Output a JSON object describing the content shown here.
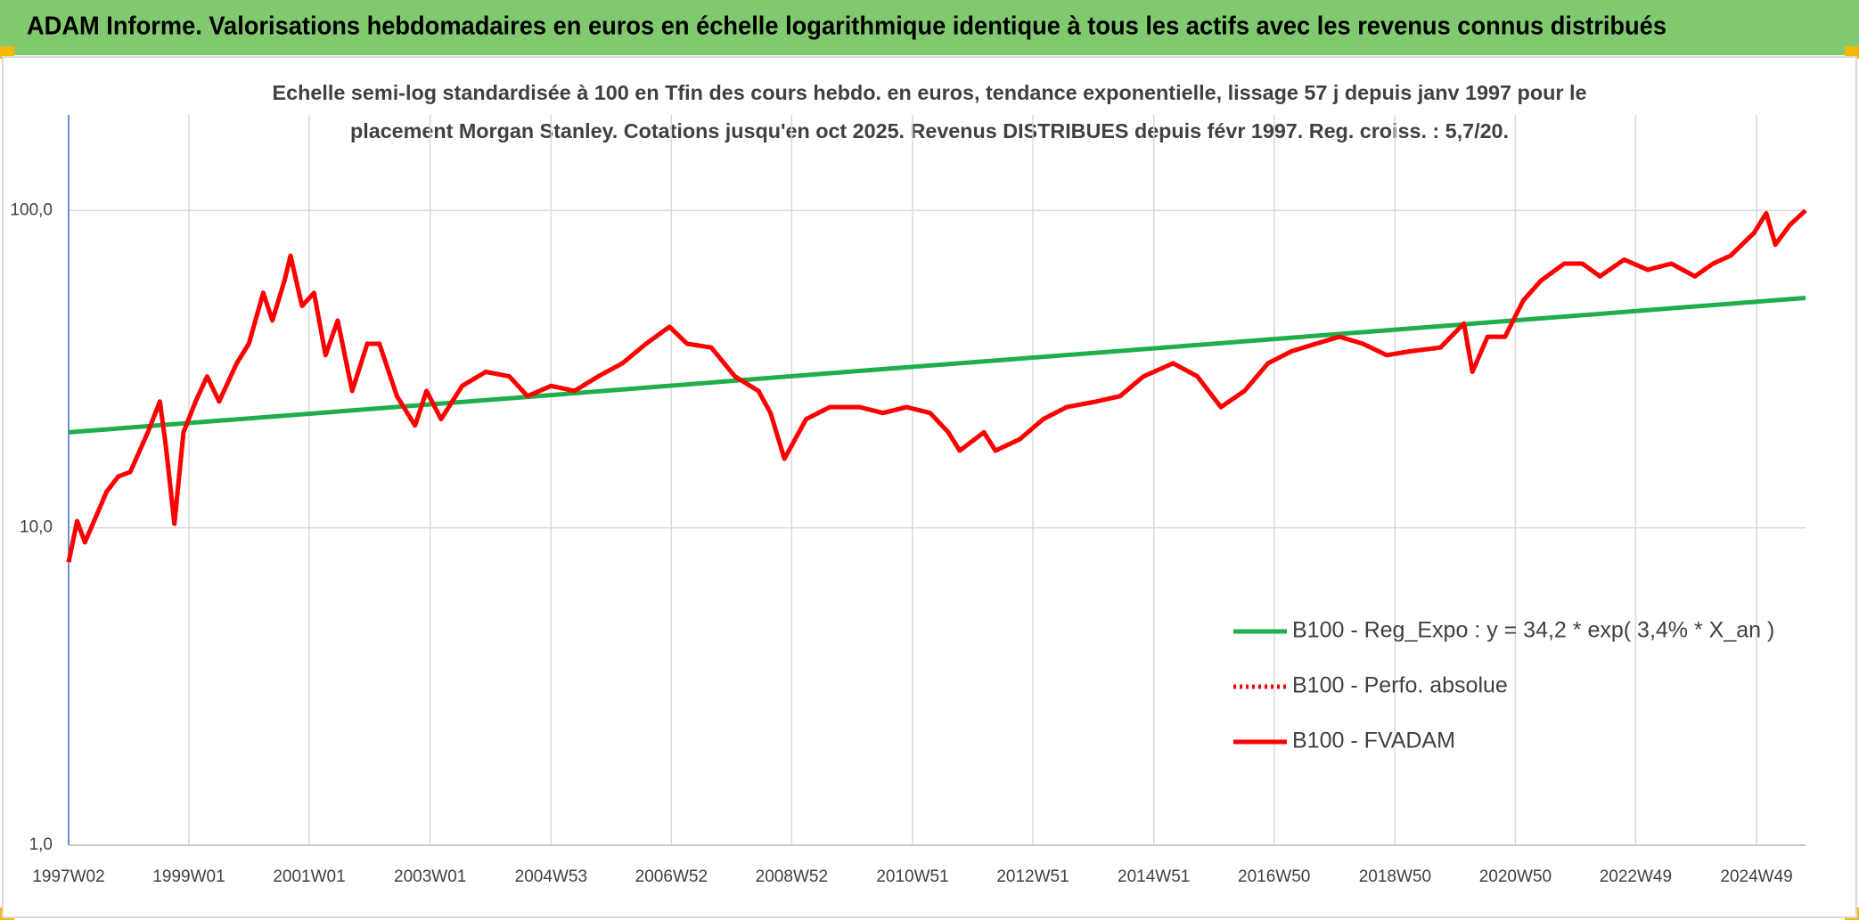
{
  "header": {
    "title": "ADAM Informe. Valorisations hebdomadaires en euros en échelle logarithmique identique à tous les actifs avec les revenus connus distribués"
  },
  "chart_data": {
    "type": "line",
    "subtitle": [
      "Echelle semi-log standardisée à 100 en Tfin des cours hebdo. en euros, tendance exponentielle, lissage 57 j depuis janv 1997 pour le",
      "placement Morgan Stanley. Cotations jusqu'en oct 2025. Revenus DISTRIBUES depuis févr 1997. Reg. croiss. : 5,7/20."
    ],
    "log_scale": true,
    "grid": true,
    "xlim": [
      1997.02,
      2025.75
    ],
    "ylim": [
      1,
      200
    ],
    "yticks": [
      {
        "value": 1,
        "label": "1,0"
      },
      {
        "value": 10,
        "label": "10,0"
      },
      {
        "value": 100,
        "label": "100,0"
      }
    ],
    "xticks": [
      {
        "value": 1997.02,
        "label": "1997W02"
      },
      {
        "value": 1999.01,
        "label": "1999W01"
      },
      {
        "value": 2001.0,
        "label": "2001W01"
      },
      {
        "value": 2003.0,
        "label": "2003W01"
      },
      {
        "value": 2005.0,
        "label": "2004W53"
      },
      {
        "value": 2006.99,
        "label": "2006W52"
      },
      {
        "value": 2008.98,
        "label": "2008W52"
      },
      {
        "value": 2010.98,
        "label": "2010W51"
      },
      {
        "value": 2012.97,
        "label": "2012W51"
      },
      {
        "value": 2014.97,
        "label": "2014W51"
      },
      {
        "value": 2016.96,
        "label": "2016W50"
      },
      {
        "value": 2018.96,
        "label": "2018W50"
      },
      {
        "value": 2020.95,
        "label": "2020W50"
      },
      {
        "value": 2022.94,
        "label": "2022W49"
      },
      {
        "value": 2024.94,
        "label": "2024W49"
      }
    ],
    "series": [
      {
        "name": "B100 - Reg_Expo : y = 34,2 * exp( 3,4% *  X_an )",
        "color": "#1fae4b",
        "style": "solid",
        "x": [
          1997.02,
          2005.0,
          2010.0,
          2015.0,
          2020.0,
          2025.75
        ],
        "values": [
          20,
          26.2,
          31.1,
          36.8,
          43.6,
          53
        ]
      },
      {
        "name": "B100 - Perfo. absolue",
        "color": "#ff0000",
        "style": "dotted",
        "x": [
          1997.02,
          1997.16,
          1997.29,
          1997.65,
          1997.84,
          1998.04,
          1998.33,
          1998.53,
          1998.63,
          1998.77,
          1998.92,
          1999.12,
          1999.31,
          1999.51,
          1999.8,
          2000.0,
          2000.24,
          2000.39,
          2000.59,
          2000.69,
          2000.88,
          2001.08,
          2001.27,
          2001.47,
          2001.71,
          2001.96,
          2002.16,
          2002.45,
          2002.75,
          2002.94,
          2003.18,
          2003.53,
          2003.92,
          2004.31,
          2004.61,
          2005.0,
          2005.39,
          2005.78,
          2006.18,
          2006.57,
          2006.96,
          2007.25,
          2007.65,
          2008.04,
          2008.43,
          2008.63,
          2008.86,
          2009.22,
          2009.61,
          2010.1,
          2010.49,
          2010.88,
          2011.27,
          2011.57,
          2011.76,
          2012.16,
          2012.35,
          2012.75,
          2013.14,
          2013.53,
          2014.02,
          2014.41,
          2014.8,
          2015.29,
          2015.69,
          2016.08,
          2016.47,
          2016.86,
          2017.25,
          2017.65,
          2018.04,
          2018.43,
          2018.82,
          2019.22,
          2019.71,
          2020.1,
          2020.24,
          2020.49,
          2020.78,
          2021.08,
          2021.37,
          2021.76,
          2022.06,
          2022.35,
          2022.75,
          2023.14,
          2023.53,
          2023.92,
          2024.22,
          2024.51,
          2024.9,
          2025.1,
          2025.25,
          2025.49,
          2025.75
        ],
        "values": [
          7.8,
          10.5,
          9,
          13,
          14.5,
          15,
          20,
          25,
          18,
          10.3,
          20,
          25,
          30,
          25,
          33,
          38,
          55,
          45,
          60,
          72,
          50,
          55,
          35,
          45,
          27,
          38,
          38,
          26,
          21,
          27,
          22,
          28,
          31,
          30,
          26,
          28,
          27,
          30,
          33,
          38,
          43,
          38,
          37,
          30,
          27,
          23,
          16.5,
          22,
          24,
          24,
          23,
          24,
          23,
          20,
          17.5,
          20,
          17.5,
          19,
          22,
          24,
          25,
          26,
          30,
          33,
          30,
          24,
          27,
          33,
          36,
          38,
          40,
          38,
          35,
          36,
          37,
          44,
          31,
          40,
          40,
          52,
          60,
          68,
          68,
          62,
          70,
          65,
          68,
          62,
          68,
          72,
          85,
          98,
          78,
          90,
          100
        ]
      },
      {
        "name": "B100 - FVADAM",
        "color": "#ff0000",
        "style": "solid",
        "x": [
          1997.02,
          1997.16,
          1997.29,
          1997.65,
          1997.84,
          1998.04,
          1998.33,
          1998.53,
          1998.63,
          1998.77,
          1998.92,
          1999.12,
          1999.31,
          1999.51,
          1999.8,
          2000.0,
          2000.24,
          2000.39,
          2000.59,
          2000.69,
          2000.88,
          2001.08,
          2001.27,
          2001.47,
          2001.71,
          2001.96,
          2002.16,
          2002.45,
          2002.75,
          2002.94,
          2003.18,
          2003.53,
          2003.92,
          2004.31,
          2004.61,
          2005.0,
          2005.39,
          2005.78,
          2006.18,
          2006.57,
          2006.96,
          2007.25,
          2007.65,
          2008.04,
          2008.43,
          2008.63,
          2008.86,
          2009.22,
          2009.61,
          2010.1,
          2010.49,
          2010.88,
          2011.27,
          2011.57,
          2011.76,
          2012.16,
          2012.35,
          2012.75,
          2013.14,
          2013.53,
          2014.02,
          2014.41,
          2014.8,
          2015.29,
          2015.69,
          2016.08,
          2016.47,
          2016.86,
          2017.25,
          2017.65,
          2018.04,
          2018.43,
          2018.82,
          2019.22,
          2019.71,
          2020.1,
          2020.24,
          2020.49,
          2020.78,
          2021.08,
          2021.37,
          2021.76,
          2022.06,
          2022.35,
          2022.75,
          2023.14,
          2023.53,
          2023.92,
          2024.22,
          2024.51,
          2024.9,
          2025.1,
          2025.25,
          2025.49,
          2025.75
        ],
        "values": [
          7.8,
          10.5,
          9,
          13,
          14.5,
          15,
          20,
          25,
          18,
          10.3,
          20,
          25,
          30,
          25,
          33,
          38,
          55,
          45,
          60,
          72,
          50,
          55,
          35,
          45,
          27,
          38,
          38,
          26,
          21,
          27,
          22,
          28,
          31,
          30,
          26,
          28,
          27,
          30,
          33,
          38,
          43,
          38,
          37,
          30,
          27,
          23,
          16.5,
          22,
          24,
          24,
          23,
          24,
          23,
          20,
          17.5,
          20,
          17.5,
          19,
          22,
          24,
          25,
          26,
          30,
          33,
          30,
          24,
          27,
          33,
          36,
          38,
          40,
          38,
          35,
          36,
          37,
          44,
          31,
          40,
          40,
          52,
          60,
          68,
          68,
          62,
          70,
          65,
          68,
          62,
          68,
          72,
          85,
          98,
          78,
          90,
          100
        ]
      }
    ]
  }
}
